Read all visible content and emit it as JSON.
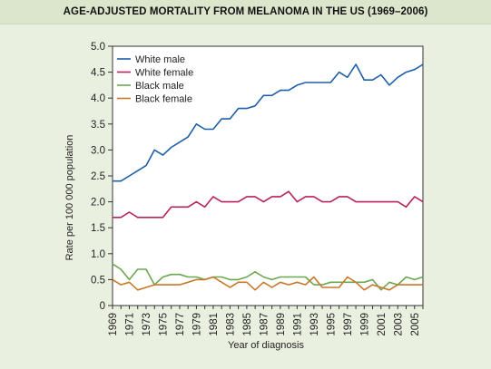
{
  "chart_data": {
    "type": "line",
    "title": "AGE-ADJUSTED MORTALITY FROM MELANOMA IN THE US (1969–2006)",
    "xlabel": "Year of diagnosis",
    "ylabel": "Rate per 100 000 population",
    "xlim": [
      1969,
      2006
    ],
    "ylim": [
      0,
      5.0
    ],
    "yticks": [
      0,
      0.5,
      1.0,
      1.5,
      2.0,
      2.5,
      3.0,
      3.5,
      4.0,
      4.5,
      5.0
    ],
    "ytick_labels": [
      "0",
      "0.5",
      "1.0",
      "1.5",
      "2.0",
      "2.5",
      "3.0",
      "3.5",
      "4.0",
      "4.5",
      "5.0"
    ],
    "xticks": [
      1969,
      1971,
      1973,
      1975,
      1977,
      1979,
      1981,
      1983,
      1985,
      1987,
      1989,
      1991,
      1993,
      1995,
      1997,
      1999,
      2001,
      2003,
      2005
    ],
    "legend_position": "top-left",
    "grid": false,
    "x": [
      1969,
      1970,
      1971,
      1972,
      1973,
      1974,
      1975,
      1976,
      1977,
      1978,
      1979,
      1980,
      1981,
      1982,
      1983,
      1984,
      1985,
      1986,
      1987,
      1988,
      1989,
      1990,
      1991,
      1992,
      1993,
      1994,
      1995,
      1996,
      1997,
      1998,
      1999,
      2000,
      2001,
      2002,
      2003,
      2004,
      2005,
      2006
    ],
    "series": [
      {
        "name": "White male",
        "color": "#1f5fa8",
        "values": [
          2.4,
          2.4,
          2.5,
          2.6,
          2.7,
          3.0,
          2.9,
          3.05,
          3.15,
          3.25,
          3.5,
          3.4,
          3.4,
          3.6,
          3.6,
          3.8,
          3.8,
          3.85,
          4.05,
          4.05,
          4.15,
          4.15,
          4.25,
          4.3,
          4.3,
          4.3,
          4.3,
          4.5,
          4.4,
          4.65,
          4.35,
          4.35,
          4.45,
          4.25,
          4.4,
          4.5,
          4.55,
          4.65
        ]
      },
      {
        "name": "White female",
        "color": "#b7245c",
        "values": [
          1.7,
          1.7,
          1.8,
          1.7,
          1.7,
          1.7,
          1.7,
          1.9,
          1.9,
          1.9,
          2.0,
          1.9,
          2.1,
          2.0,
          2.0,
          2.0,
          2.1,
          2.1,
          2.0,
          2.1,
          2.1,
          2.2,
          2.0,
          2.1,
          2.1,
          2.0,
          2.0,
          2.1,
          2.1,
          2.0,
          2.0,
          2.0,
          2.0,
          2.0,
          2.0,
          1.9,
          2.1,
          2.0
        ]
      },
      {
        "name": "Black male",
        "color": "#6aa84f",
        "values": [
          0.8,
          0.7,
          0.5,
          0.7,
          0.7,
          0.4,
          0.55,
          0.6,
          0.6,
          0.55,
          0.55,
          0.5,
          0.55,
          0.55,
          0.5,
          0.5,
          0.55,
          0.65,
          0.55,
          0.5,
          0.55,
          0.55,
          0.55,
          0.55,
          0.4,
          0.4,
          0.45,
          0.45,
          0.45,
          0.45,
          0.45,
          0.5,
          0.3,
          0.45,
          0.4,
          0.55,
          0.5,
          0.55
        ]
      },
      {
        "name": "Black female",
        "color": "#c8782a",
        "values": [
          0.5,
          0.4,
          0.45,
          0.3,
          0.35,
          0.4,
          0.4,
          0.4,
          0.4,
          0.45,
          0.5,
          0.5,
          0.55,
          0.45,
          0.35,
          0.45,
          0.45,
          0.3,
          0.45,
          0.35,
          0.45,
          0.4,
          0.45,
          0.4,
          0.55,
          0.35,
          0.35,
          0.35,
          0.55,
          0.45,
          0.3,
          0.4,
          0.35,
          0.3,
          0.4,
          0.4,
          0.4,
          0.4
        ]
      }
    ]
  }
}
